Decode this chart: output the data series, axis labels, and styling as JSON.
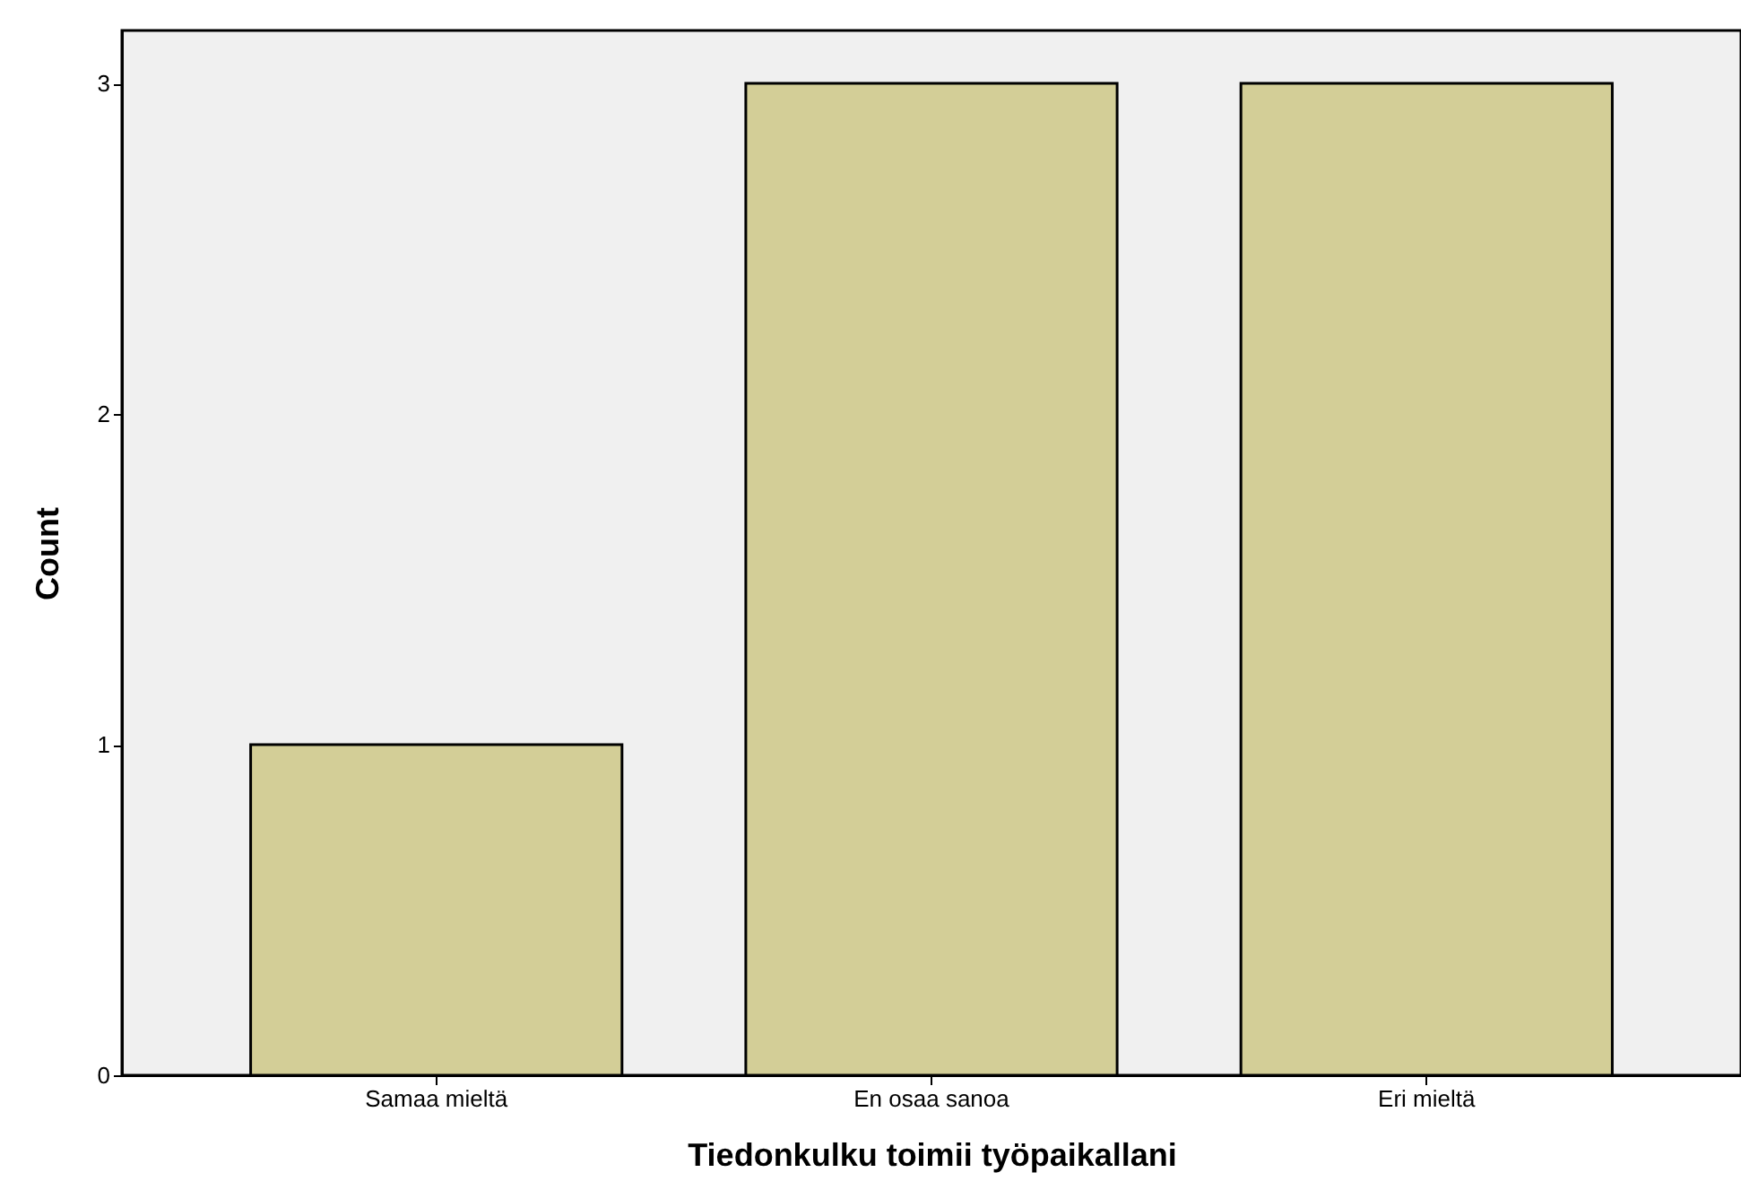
{
  "chart_data": {
    "type": "bar",
    "xlabel": "Tiedonkulku toimii työpaikallani",
    "ylabel": "Count",
    "categories": [
      "Samaa mieltä",
      "En osaa sanoa",
      "Eri mieltä"
    ],
    "values": [
      1,
      3,
      3
    ],
    "color": "#d3ce97",
    "ylim": [
      0,
      3.16
    ],
    "yticks": [
      0,
      1,
      2,
      3
    ],
    "grid": false
  }
}
